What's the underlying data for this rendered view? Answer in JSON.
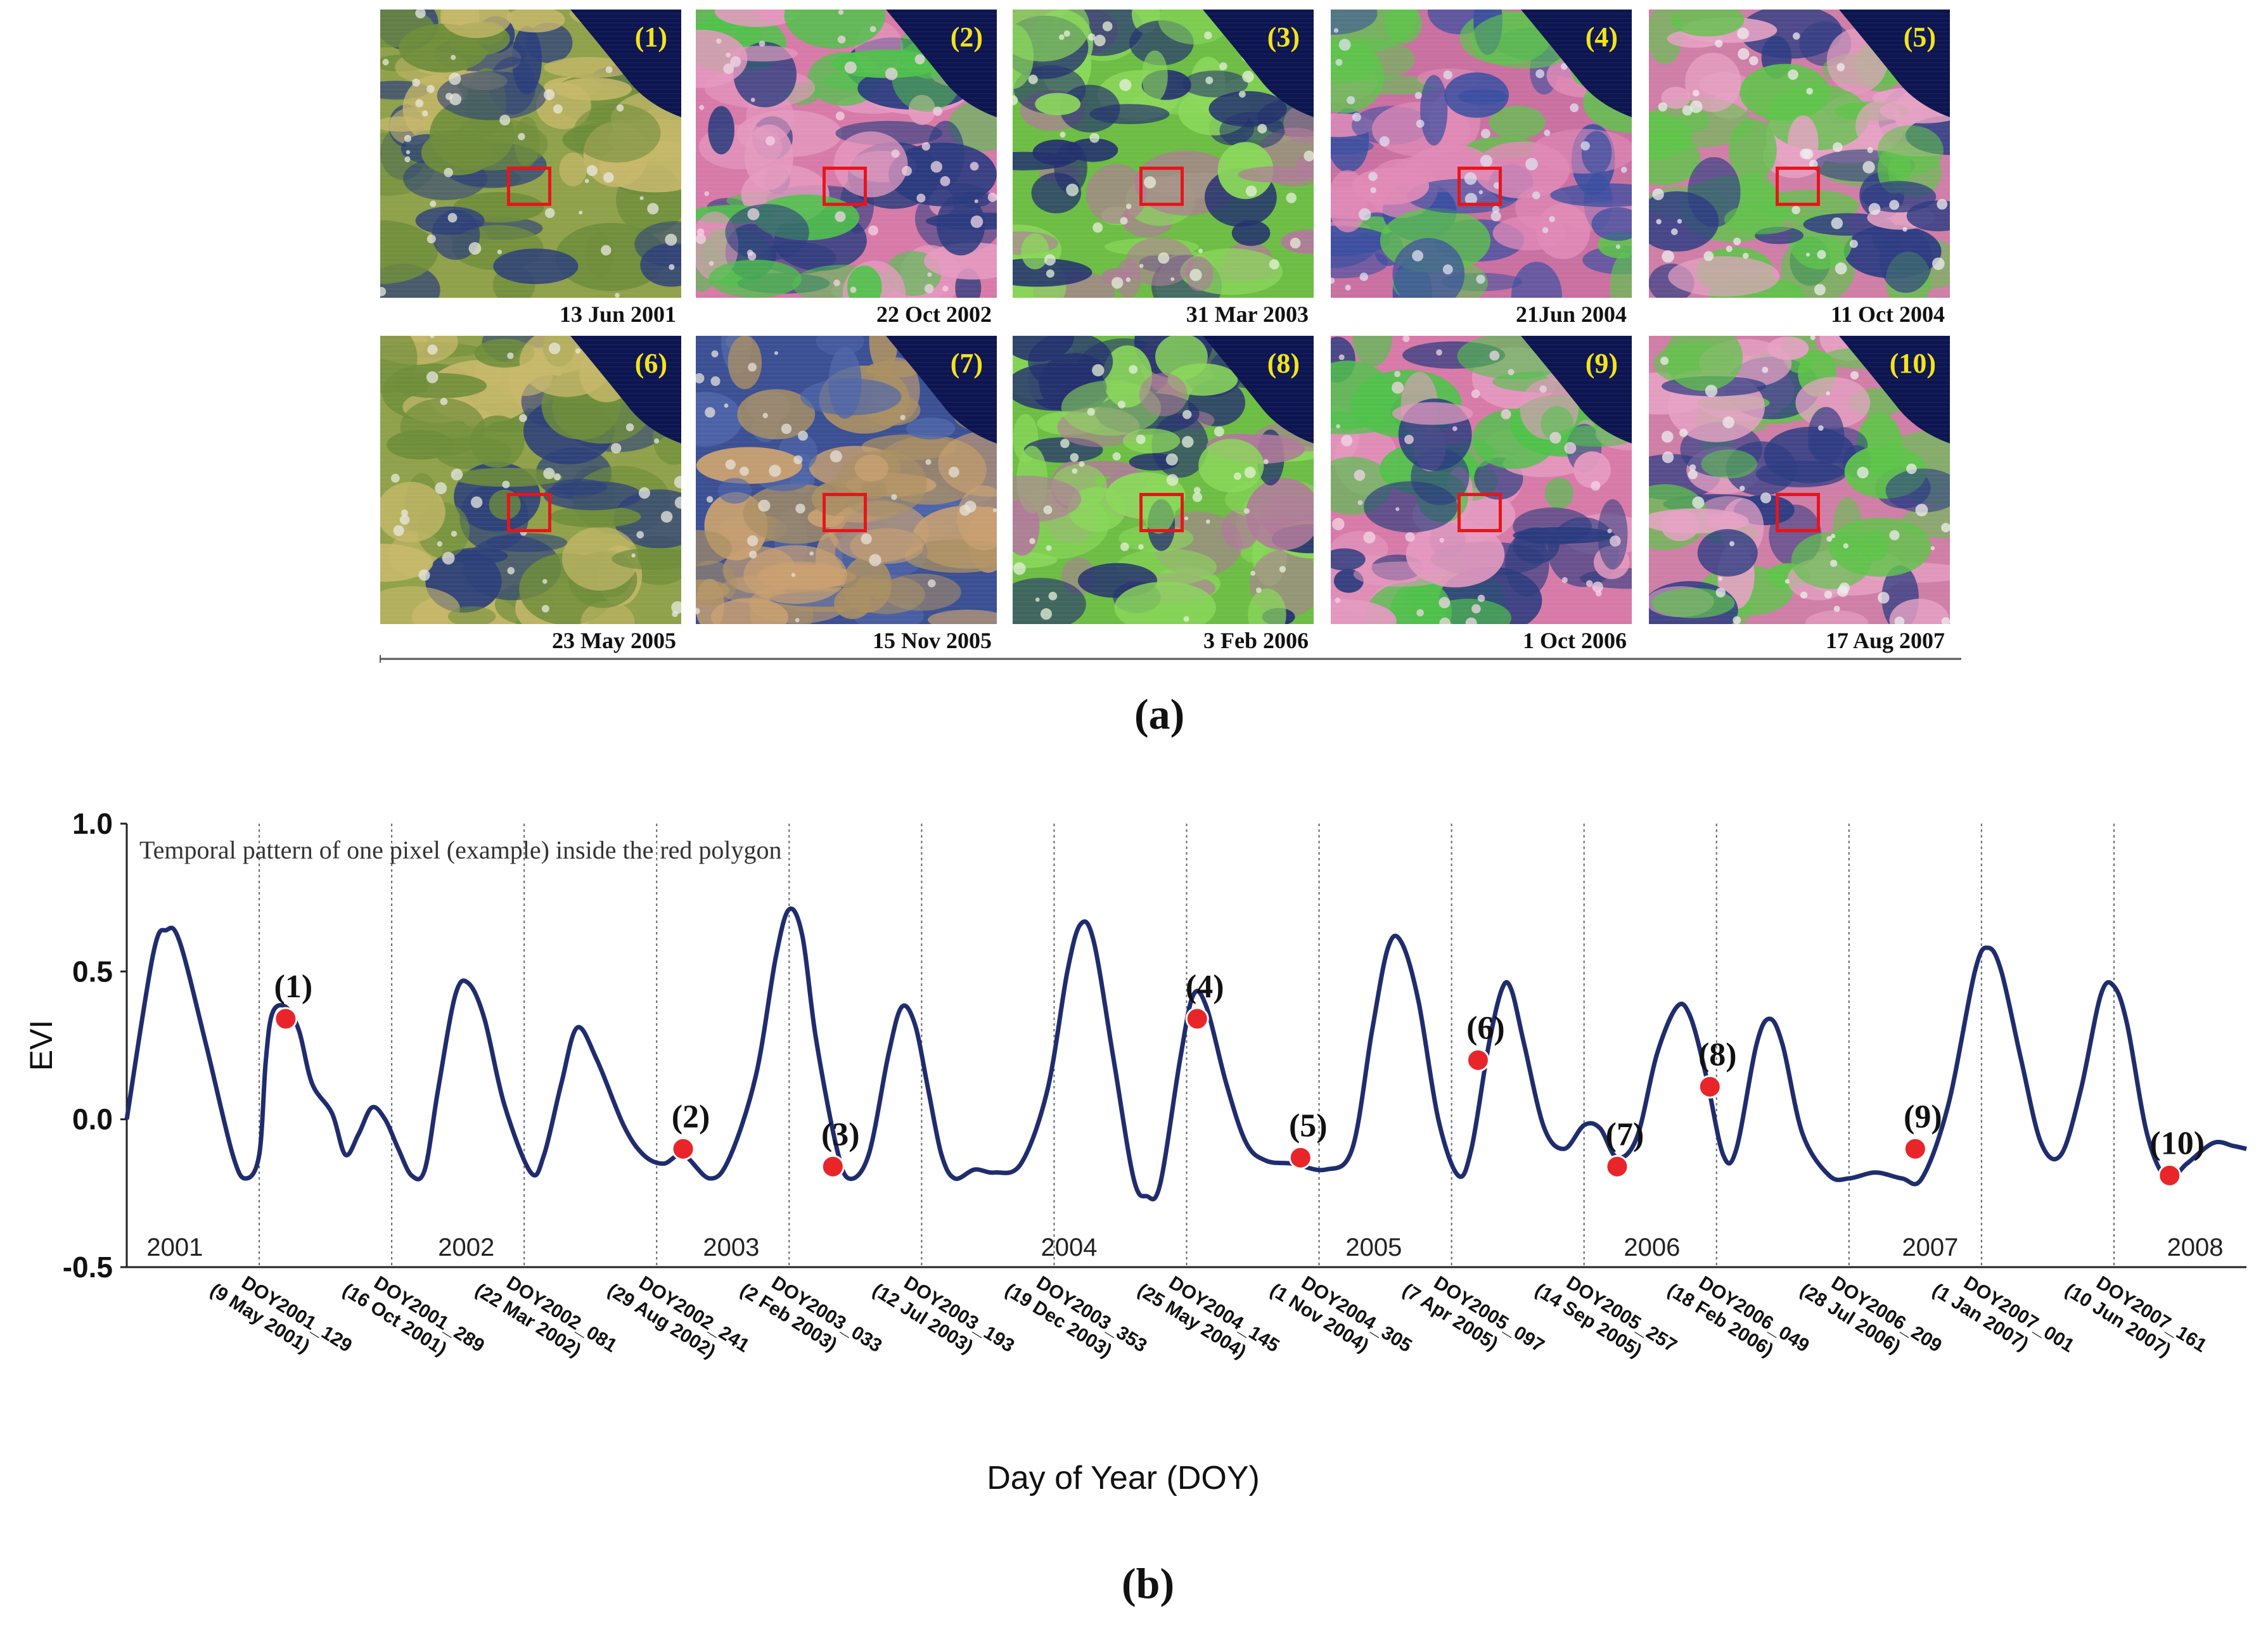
{
  "panel_a": {
    "label": "(a)",
    "images": [
      {
        "num": "(1)",
        "date": "13 Jun 2001",
        "palette": "cloudy-green"
      },
      {
        "num": "(2)",
        "date": "22 Oct 2002",
        "palette": "pink"
      },
      {
        "num": "(3)",
        "date": "31 Mar 2003",
        "palette": "green"
      },
      {
        "num": "(4)",
        "date": "21Jun 2004",
        "palette": "pink-blue"
      },
      {
        "num": "(5)",
        "date": "11 Oct 2004",
        "palette": "pink-green"
      },
      {
        "num": "(6)",
        "date": "23 May 2005",
        "palette": "cloudy-green"
      },
      {
        "num": "(7)",
        "date": "15 Nov 2005",
        "palette": "blue-brown"
      },
      {
        "num": "(8)",
        "date": "3 Feb 2006",
        "palette": "green"
      },
      {
        "num": "(9)",
        "date": "1 Oct 2006",
        "palette": "pink"
      },
      {
        "num": "(10)",
        "date": "17 Aug 2007",
        "palette": "pink-green"
      }
    ]
  },
  "panel_b": {
    "label": "(b)"
  },
  "colors": {
    "line": "#1f2d6e",
    "marker": "#e8262a",
    "roi": "#e8151a",
    "image_number": "#f4e31a"
  },
  "chart_data": {
    "type": "line",
    "title": "Temporal pattern of one pixel (example) inside the red polygon",
    "xlabel": "Day of Year (DOY)",
    "ylabel": "EVI",
    "ylim": [
      -0.5,
      1.0
    ],
    "xlim": [
      0,
      16
    ],
    "yticks": [
      "1.0",
      "0.5",
      "0.0",
      "-0.5"
    ],
    "ytick_values": [
      1.0,
      0.5,
      0.0,
      -0.5
    ],
    "grid": "vertical dotted",
    "years": [
      {
        "label": "2001",
        "x": 0.15
      },
      {
        "label": "2002",
        "x": 2.35
      },
      {
        "label": "2003",
        "x": 4.35
      },
      {
        "label": "2004",
        "x": 6.9
      },
      {
        "label": "2005",
        "x": 9.2
      },
      {
        "label": "2006",
        "x": 11.3
      },
      {
        "label": "2007",
        "x": 13.4
      },
      {
        "label": "2008",
        "x": 15.4
      }
    ],
    "xticks": [
      {
        "x": 1,
        "label": "DOY2001_129",
        "sub": "(9 May 2001)"
      },
      {
        "x": 2,
        "label": "DOY2001_289",
        "sub": "(16 Oct 2001)"
      },
      {
        "x": 3,
        "label": "DOY2002_081",
        "sub": "(22 Mar 2002)"
      },
      {
        "x": 4,
        "label": "DOY2002_241",
        "sub": "(29 Aug 2002)"
      },
      {
        "x": 5,
        "label": "DOY2003_033",
        "sub": "(2 Feb 2003)"
      },
      {
        "x": 6,
        "label": "DOY2003_193",
        "sub": "(12 Jul 2003)"
      },
      {
        "x": 7,
        "label": "DOY2003_353",
        "sub": "(19 Dec 2003)"
      },
      {
        "x": 8,
        "label": "DOY2004_145",
        "sub": "(25 May 2004)"
      },
      {
        "x": 9,
        "label": "DOY2004_305",
        "sub": "(1 Nov 2004)"
      },
      {
        "x": 10,
        "label": "DOY2005_097",
        "sub": "(7 Apr 2005)"
      },
      {
        "x": 11,
        "label": "DOY2005_257",
        "sub": "(14 Sep 2005)"
      },
      {
        "x": 12,
        "label": "DOY2006_049",
        "sub": "(18 Feb 2006)"
      },
      {
        "x": 13,
        "label": "DOY2006_209",
        "sub": "(28 Jul 2006)"
      },
      {
        "x": 14,
        "label": "DOY2007_001",
        "sub": "(1 Jan 2007)"
      },
      {
        "x": 15,
        "label": "DOY2007_161",
        "sub": "(10 Jun 2007)"
      }
    ],
    "series": [
      {
        "name": "EVI",
        "points": [
          [
            0.0,
            0.0
          ],
          [
            0.2,
            0.56
          ],
          [
            0.3,
            0.64
          ],
          [
            0.4,
            0.6
          ],
          [
            0.6,
            0.25
          ],
          [
            0.8,
            -0.12
          ],
          [
            0.9,
            -0.2
          ],
          [
            1.0,
            -0.12
          ],
          [
            1.05,
            0.2
          ],
          [
            1.1,
            0.36
          ],
          [
            1.2,
            0.38
          ],
          [
            1.3,
            0.3
          ],
          [
            1.4,
            0.12
          ],
          [
            1.55,
            0.02
          ],
          [
            1.65,
            -0.12
          ],
          [
            1.75,
            -0.05
          ],
          [
            1.85,
            0.04
          ],
          [
            1.95,
            0.0
          ],
          [
            2.05,
            -0.1
          ],
          [
            2.15,
            -0.19
          ],
          [
            2.25,
            -0.17
          ],
          [
            2.35,
            0.1
          ],
          [
            2.48,
            0.42
          ],
          [
            2.58,
            0.46
          ],
          [
            2.7,
            0.34
          ],
          [
            2.85,
            0.05
          ],
          [
            3.05,
            -0.18
          ],
          [
            3.15,
            -0.12
          ],
          [
            3.28,
            0.12
          ],
          [
            3.4,
            0.31
          ],
          [
            3.55,
            0.2
          ],
          [
            3.75,
            -0.02
          ],
          [
            3.9,
            -0.12
          ],
          [
            4.05,
            -0.15
          ],
          [
            4.2,
            -0.12
          ],
          [
            4.4,
            -0.2
          ],
          [
            4.55,
            -0.13
          ],
          [
            4.75,
            0.15
          ],
          [
            4.9,
            0.55
          ],
          [
            5.0,
            0.71
          ],
          [
            5.1,
            0.62
          ],
          [
            5.2,
            0.28
          ],
          [
            5.35,
            -0.08
          ],
          [
            5.45,
            -0.2
          ],
          [
            5.6,
            -0.12
          ],
          [
            5.75,
            0.22
          ],
          [
            5.85,
            0.38
          ],
          [
            5.95,
            0.32
          ],
          [
            6.05,
            0.1
          ],
          [
            6.15,
            -0.12
          ],
          [
            6.25,
            -0.2
          ],
          [
            6.4,
            -0.17
          ],
          [
            6.55,
            -0.18
          ],
          [
            6.75,
            -0.15
          ],
          [
            6.95,
            0.1
          ],
          [
            7.1,
            0.5
          ],
          [
            7.2,
            0.66
          ],
          [
            7.3,
            0.6
          ],
          [
            7.45,
            0.2
          ],
          [
            7.6,
            -0.2
          ],
          [
            7.7,
            -0.26
          ],
          [
            7.8,
            -0.22
          ],
          [
            7.95,
            0.2
          ],
          [
            8.05,
            0.42
          ],
          [
            8.15,
            0.38
          ],
          [
            8.3,
            0.12
          ],
          [
            8.45,
            -0.08
          ],
          [
            8.6,
            -0.14
          ],
          [
            8.8,
            -0.15
          ],
          [
            9.05,
            -0.17
          ],
          [
            9.25,
            -0.1
          ],
          [
            9.4,
            0.3
          ],
          [
            9.52,
            0.58
          ],
          [
            9.62,
            0.6
          ],
          [
            9.75,
            0.4
          ],
          [
            9.9,
            0.0
          ],
          [
            10.05,
            -0.19
          ],
          [
            10.15,
            -0.1
          ],
          [
            10.28,
            0.25
          ],
          [
            10.38,
            0.44
          ],
          [
            10.45,
            0.44
          ],
          [
            10.55,
            0.25
          ],
          [
            10.7,
            -0.03
          ],
          [
            10.85,
            -0.1
          ],
          [
            11.0,
            -0.02
          ],
          [
            11.12,
            -0.03
          ],
          [
            11.25,
            -0.13
          ],
          [
            11.4,
            -0.06
          ],
          [
            11.55,
            0.22
          ],
          [
            11.7,
            0.38
          ],
          [
            11.8,
            0.35
          ],
          [
            11.92,
            0.15
          ],
          [
            12.05,
            -0.12
          ],
          [
            12.15,
            -0.1
          ],
          [
            12.3,
            0.25
          ],
          [
            12.4,
            0.34
          ],
          [
            12.5,
            0.25
          ],
          [
            12.65,
            -0.05
          ],
          [
            12.85,
            -0.19
          ],
          [
            13.0,
            -0.2
          ],
          [
            13.2,
            -0.18
          ],
          [
            13.4,
            -0.2
          ],
          [
            13.55,
            -0.2
          ],
          [
            13.75,
            0.05
          ],
          [
            13.95,
            0.5
          ],
          [
            14.05,
            0.58
          ],
          [
            14.15,
            0.5
          ],
          [
            14.3,
            0.2
          ],
          [
            14.45,
            -0.08
          ],
          [
            14.6,
            -0.12
          ],
          [
            14.75,
            0.1
          ],
          [
            14.9,
            0.42
          ],
          [
            15.0,
            0.45
          ],
          [
            15.1,
            0.32
          ],
          [
            15.25,
            -0.05
          ],
          [
            15.4,
            -0.2
          ],
          [
            15.55,
            -0.15
          ],
          [
            15.75,
            -0.08
          ],
          [
            15.9,
            -0.09
          ],
          [
            16.0,
            -0.1
          ]
        ]
      }
    ],
    "markers": [
      {
        "label": "(1)",
        "x": 1.2,
        "y": 0.34
      },
      {
        "label": "(2)",
        "x": 4.2,
        "y": -0.1
      },
      {
        "label": "(3)",
        "x": 5.33,
        "y": -0.16
      },
      {
        "label": "(4)",
        "x": 8.08,
        "y": 0.34
      },
      {
        "label": "(5)",
        "x": 8.86,
        "y": -0.13
      },
      {
        "label": "(6)",
        "x": 10.2,
        "y": 0.2
      },
      {
        "label": "(7)",
        "x": 11.25,
        "y": -0.16
      },
      {
        "label": "(8)",
        "x": 11.95,
        "y": 0.11
      },
      {
        "label": "(9)",
        "x": 13.5,
        "y": -0.1
      },
      {
        "label": "(10)",
        "x": 15.42,
        "y": -0.19
      }
    ]
  }
}
